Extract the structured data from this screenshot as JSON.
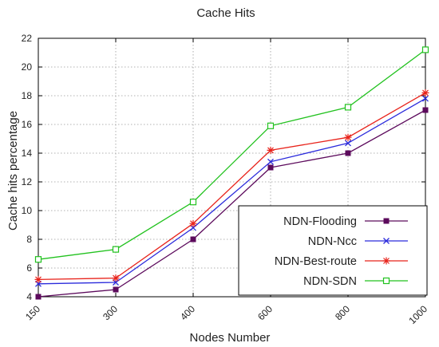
{
  "chart_data": {
    "type": "line",
    "title": "Cache Hits",
    "xlabel": "Nodes Number",
    "ylabel": "Cache hits percentage",
    "categories": [
      "150",
      "300",
      "400",
      "600",
      "800",
      "1000"
    ],
    "ylim": [
      4,
      22
    ],
    "yticks": [
      4,
      6,
      8,
      10,
      12,
      14,
      16,
      18,
      20,
      22
    ],
    "grid": "dashed-both",
    "legend_position": "bottom-right",
    "series": [
      {
        "name": "NDN-Flooding",
        "color": "#5c0a5c",
        "marker": "filled-square",
        "values": [
          4.0,
          4.5,
          8.0,
          13.0,
          14.0,
          17.0
        ]
      },
      {
        "name": "NDN-Ncc",
        "color": "#2b2bdc",
        "marker": "x",
        "values": [
          4.9,
          5.0,
          8.8,
          13.4,
          14.7,
          17.8
        ]
      },
      {
        "name": "NDN-Best-route",
        "color": "#e8231b",
        "marker": "star",
        "values": [
          5.2,
          5.3,
          9.1,
          14.2,
          15.1,
          18.2
        ]
      },
      {
        "name": "NDN-SDN",
        "color": "#22c21f",
        "marker": "open-square",
        "values": [
          6.6,
          7.3,
          10.6,
          15.9,
          17.2,
          21.2
        ]
      }
    ]
  }
}
